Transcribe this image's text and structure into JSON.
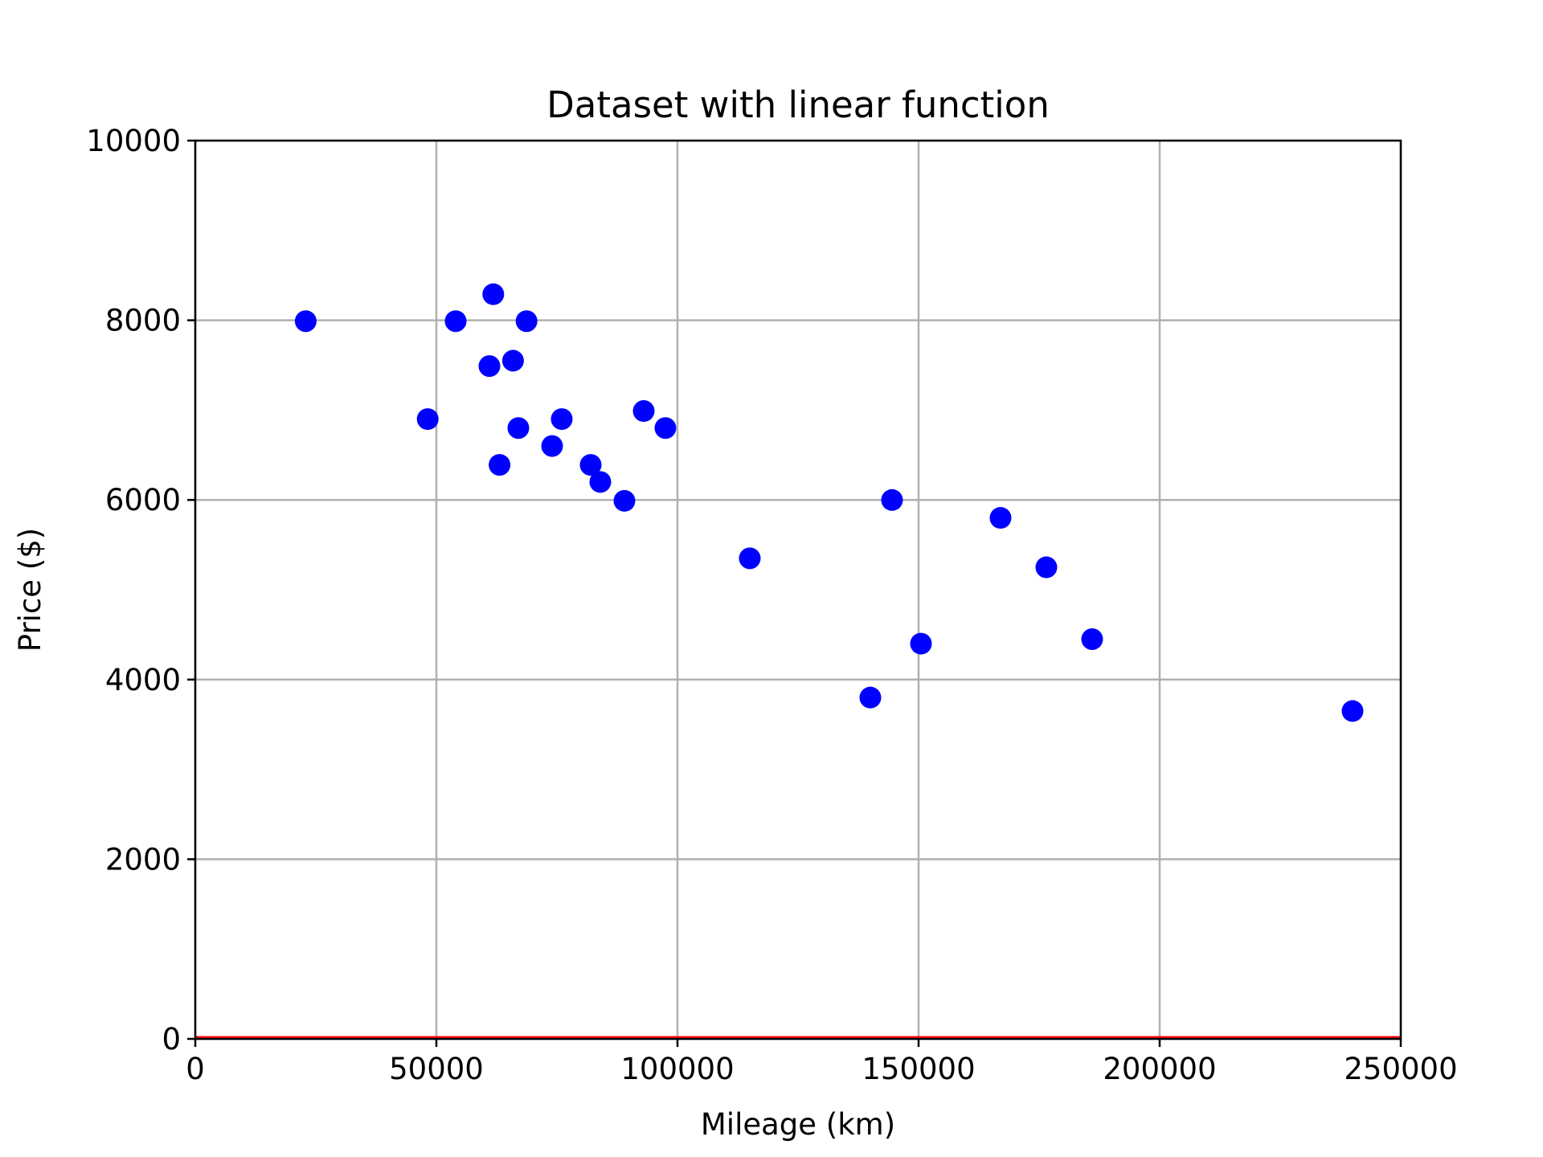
{
  "chart_data": {
    "type": "scatter",
    "title": "Dataset with linear function",
    "xlabel": "Mileage (km)",
    "ylabel": "Price ($)",
    "xlim": [
      0,
      250000
    ],
    "ylim": [
      0,
      10000
    ],
    "xticks": [
      0,
      50000,
      100000,
      150000,
      200000,
      250000
    ],
    "yticks": [
      0,
      2000,
      4000,
      6000,
      8000,
      10000
    ],
    "grid": true,
    "series": [
      {
        "marker_color": "#0000ff",
        "points": [
          {
            "x": 22900,
            "y": 7990
          },
          {
            "x": 48200,
            "y": 6900
          },
          {
            "x": 54000,
            "y": 7990
          },
          {
            "x": 61000,
            "y": 7490
          },
          {
            "x": 61800,
            "y": 8290
          },
          {
            "x": 63100,
            "y": 6390
          },
          {
            "x": 65900,
            "y": 7550
          },
          {
            "x": 67000,
            "y": 6800
          },
          {
            "x": 68700,
            "y": 7990
          },
          {
            "x": 74000,
            "y": 6600
          },
          {
            "x": 76000,
            "y": 6900
          },
          {
            "x": 82000,
            "y": 6390
          },
          {
            "x": 84000,
            "y": 6200
          },
          {
            "x": 89000,
            "y": 5990
          },
          {
            "x": 93000,
            "y": 6990
          },
          {
            "x": 97500,
            "y": 6800
          },
          {
            "x": 115000,
            "y": 5350
          },
          {
            "x": 140000,
            "y": 3800
          },
          {
            "x": 144500,
            "y": 5999
          },
          {
            "x": 150500,
            "y": 4400
          },
          {
            "x": 167000,
            "y": 5800
          },
          {
            "x": 176500,
            "y": 5250
          },
          {
            "x": 186000,
            "y": 4450
          },
          {
            "x": 240000,
            "y": 3650
          }
        ]
      },
      {
        "type": "line",
        "line_color": "#ff0000",
        "points": [
          {
            "x": 0,
            "y": 0
          },
          {
            "x": 250000,
            "y": 0
          }
        ]
      }
    ]
  }
}
